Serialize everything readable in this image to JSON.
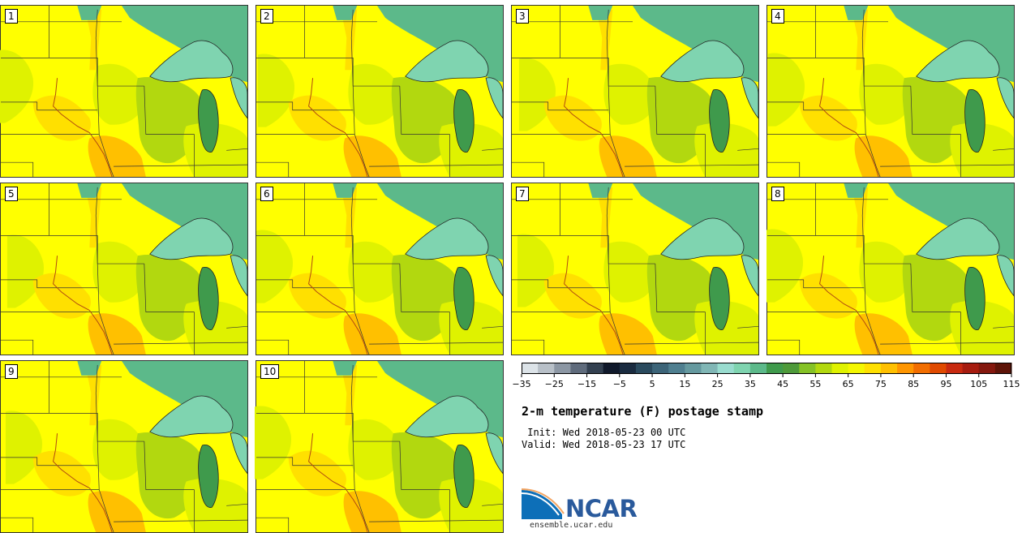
{
  "members": [
    {
      "label": "1"
    },
    {
      "label": "2"
    },
    {
      "label": "3"
    },
    {
      "label": "4"
    },
    {
      "label": "5"
    },
    {
      "label": "6"
    },
    {
      "label": "7"
    },
    {
      "label": "8"
    },
    {
      "label": "9"
    },
    {
      "label": "10"
    }
  ],
  "colorbar": {
    "tick_labels": [
      "−35",
      "−25",
      "−15",
      "−5",
      "5",
      "15",
      "25",
      "35",
      "45",
      "55",
      "65",
      "75",
      "85",
      "95",
      "105",
      "115"
    ],
    "colors": [
      "#dce3e8",
      "#b8c0c8",
      "#8c97a4",
      "#5f6b7c",
      "#334050",
      "#10192b",
      "#1a2b40",
      "#2a4a5e",
      "#3c6478",
      "#4f7f90",
      "#65999f",
      "#80b6b5",
      "#99dccf",
      "#7fd4b0",
      "#5cb98a",
      "#3f9a4c",
      "#4e9a3a",
      "#85c226",
      "#b2d80f",
      "#dff200",
      "#f4f700",
      "#ffe000",
      "#ffc000",
      "#ff9600",
      "#f26e00",
      "#e04a00",
      "#c82a10",
      "#a61c10",
      "#84180e",
      "#5e1408"
    ],
    "range": [
      -35,
      115
    ],
    "step": 5,
    "units": "F"
  },
  "title": "2-m temperature (F) postage stamp",
  "init_line": " Init: Wed 2018-05-23 00 UTC",
  "valid_line": "Valid: Wed 2018-05-23 17 UTC",
  "logo": {
    "name": "NCAR",
    "url": "ensemble.ucar.edu"
  },
  "map_colors": {
    "base_yellow": "#ffff00",
    "light_green": "#dff200",
    "mid_green": "#b2d80f",
    "orange": "#ffe000",
    "deep_orange": "#ffc000",
    "lake_fill": "#7fd4b0",
    "lake_dark": "#3f9a4c",
    "north_green": "#5cb98a",
    "border": "#333333"
  }
}
